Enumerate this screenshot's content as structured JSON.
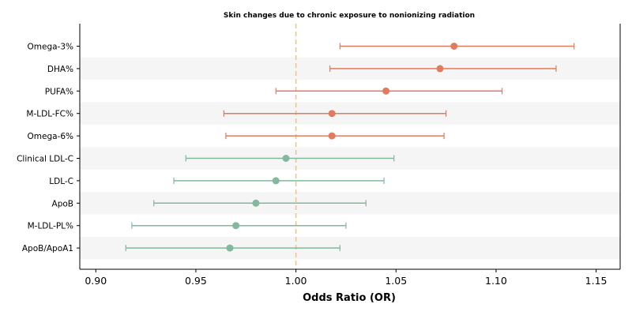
{
  "chart_data": {
    "type": "forest",
    "title": "Skin changes due to chronic exposure to nonionizing radiation",
    "xlabel": "Odds Ratio (OR)",
    "ylabel": "",
    "xlim": [
      0.892,
      1.162
    ],
    "xticks": [
      0.9,
      0.95,
      1.0,
      1.05,
      1.1,
      1.15
    ],
    "xtick_labels": [
      "0.90",
      "0.95",
      "1.00",
      "1.05",
      "1.10",
      "1.15"
    ],
    "reference_line": 1.0,
    "grid": false,
    "alternating_row_shading": true,
    "colors": {
      "above_reference": "#e07b5f",
      "below_reference": "#82b89b",
      "reference_line": "#f2c38b",
      "row_band": "#f5f5f5"
    },
    "rows": [
      {
        "label": "Omega-3%",
        "or": 1.079,
        "ci_low": 1.022,
        "ci_high": 1.139
      },
      {
        "label": "DHA%",
        "or": 1.072,
        "ci_low": 1.017,
        "ci_high": 1.13
      },
      {
        "label": "PUFA%",
        "or": 1.045,
        "ci_low": 0.99,
        "ci_high": 1.103
      },
      {
        "label": "M-LDL-FC%",
        "or": 1.018,
        "ci_low": 0.964,
        "ci_high": 1.075
      },
      {
        "label": "Omega-6%",
        "or": 1.018,
        "ci_low": 0.965,
        "ci_high": 1.074
      },
      {
        "label": "Clinical LDL-C",
        "or": 0.995,
        "ci_low": 0.945,
        "ci_high": 1.049
      },
      {
        "label": "LDL-C",
        "or": 0.99,
        "ci_low": 0.939,
        "ci_high": 1.044
      },
      {
        "label": "ApoB",
        "or": 0.98,
        "ci_low": 0.929,
        "ci_high": 1.035
      },
      {
        "label": "M-LDL-PL%",
        "or": 0.97,
        "ci_low": 0.918,
        "ci_high": 1.025
      },
      {
        "label": "ApoB/ApoA1",
        "or": 0.967,
        "ci_low": 0.915,
        "ci_high": 1.022
      }
    ]
  }
}
